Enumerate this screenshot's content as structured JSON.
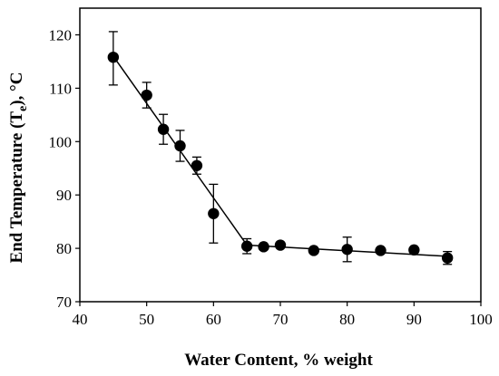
{
  "chart_data": {
    "type": "scatter",
    "xlabel": "Water Content, % weight",
    "ylabel_main": "End Temperature (T",
    "ylabel_sub": "e",
    "ylabel_tail": "), °C",
    "xlim": [
      40,
      100
    ],
    "ylim": [
      70,
      125
    ],
    "x_ticks": [
      "40",
      "50",
      "60",
      "70",
      "80",
      "90",
      "100"
    ],
    "y_ticks": [
      "70",
      "80",
      "90",
      "100",
      "110",
      "120"
    ],
    "grid": false,
    "legend": "none",
    "marker_color": "#000000",
    "series": [
      {
        "x": [
          45,
          50,
          52.5,
          55,
          57.5,
          60,
          65,
          67.5,
          70,
          75,
          80,
          85,
          90,
          95
        ],
        "y": [
          115.8,
          108.7,
          102.3,
          99.2,
          95.5,
          86.5,
          80.4,
          80.3,
          80.6,
          79.6,
          79.8,
          79.6,
          79.7,
          78.2
        ],
        "err_high": [
          4.8,
          2.4,
          2.8,
          2.9,
          1.6,
          5.5,
          1.4,
          0.0,
          0.0,
          0.0,
          2.3,
          0.0,
          0.0,
          1.2
        ],
        "err_low": [
          5.2,
          2.4,
          2.8,
          2.9,
          1.6,
          5.5,
          1.4,
          0.0,
          0.0,
          0.0,
          2.3,
          0.0,
          0.0,
          1.2
        ]
      }
    ],
    "fit_line": {
      "x": [
        45,
        65,
        95
      ],
      "y": [
        116.0,
        80.6,
        78.5
      ]
    }
  }
}
